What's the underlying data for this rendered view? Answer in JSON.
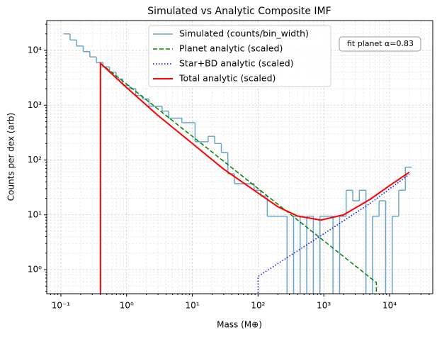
{
  "chart_data": {
    "type": "line",
    "title": "Simulated vs Analytic Composite IMF",
    "xlabel": "Mass (M⊕)",
    "ylabel": "Counts per dex (arb)",
    "xscale": "log",
    "yscale": "log",
    "xlim": [
      0.061,
      45400
    ],
    "ylim": [
      0.363,
      35000
    ],
    "xticks": [
      {
        "value": 0.1,
        "label": "10⁻¹"
      },
      {
        "value": 1,
        "label": "10⁰"
      },
      {
        "value": 10,
        "label": "10¹"
      },
      {
        "value": 100,
        "label": "10²"
      },
      {
        "value": 1000,
        "label": "10³"
      },
      {
        "value": 10000,
        "label": "10⁴"
      }
    ],
    "yticks": [
      {
        "value": 1,
        "label": "10⁰"
      },
      {
        "value": 10,
        "label": "10¹"
      },
      {
        "value": 100,
        "label": "10²"
      },
      {
        "value": 1000,
        "label": "10³"
      },
      {
        "value": 10000,
        "label": "10⁴"
      }
    ],
    "grid": true,
    "legend": "upper center",
    "annotation": "fit planet α=0.83",
    "series": [
      {
        "name": "Simulated (counts/bin_width)",
        "type": "histogram",
        "color": "#6aa4cc",
        "bins": [
          0.11,
          0.138,
          0.174,
          0.219,
          0.276,
          0.347,
          0.437,
          0.55,
          0.692,
          0.871,
          1.1,
          1.38,
          1.74,
          2.19,
          2.76,
          3.47,
          4.37,
          5.5,
          6.92,
          8.71,
          11,
          13.8,
          17.4,
          21.9,
          27.6,
          34.7,
          43.7,
          55,
          69.2,
          87.1,
          110,
          138,
          174,
          219,
          276,
          347,
          437,
          550,
          692,
          871,
          1100,
          1380,
          1740,
          2190,
          2760,
          3470,
          4370,
          5500,
          6920,
          8710,
          11000,
          13800,
          17400,
          21900
        ],
        "values": [
          20000,
          15500,
          12000,
          9500,
          7600,
          6000,
          5000,
          4000,
          3000,
          2300,
          2000,
          1500,
          1300,
          950,
          950,
          780,
          580,
          580,
          480,
          480,
          215,
          215,
          270,
          200,
          137,
          56,
          37,
          37,
          37,
          28,
          22,
          9.4,
          9.4,
          9.4,
          0,
          9.4,
          0,
          9.4,
          0,
          9.4,
          9.4,
          0,
          9.4,
          28,
          18,
          28,
          0,
          9.4,
          18,
          0,
          9.4,
          28,
          74
        ]
      },
      {
        "name": "Planet analytic (scaled)",
        "type": "line",
        "style": "dashed",
        "color": "#008000",
        "x": [
          0.4,
          6300,
          6300
        ],
        "values": [
          5800,
          0.58,
          0
        ]
      },
      {
        "name": "Star+BD analytic (scaled)",
        "type": "line",
        "style": "dotted",
        "color": "#0000ff",
        "x": [
          100,
          100,
          1000,
          5000,
          20000
        ],
        "values": [
          0,
          0.75,
          4.5,
          16,
          55
        ]
      },
      {
        "name": "Total analytic (scaled)",
        "type": "line",
        "style": "solid",
        "color": "#ff0000",
        "x": [
          0.4,
          0.4,
          1,
          3,
          10,
          30,
          100,
          200,
          400,
          900,
          2000,
          5000,
          10000,
          20000
        ],
        "values": [
          0,
          5800,
          2100,
          650,
          200,
          68,
          25,
          14,
          9.5,
          8,
          10,
          19,
          34,
          60
        ]
      }
    ]
  }
}
